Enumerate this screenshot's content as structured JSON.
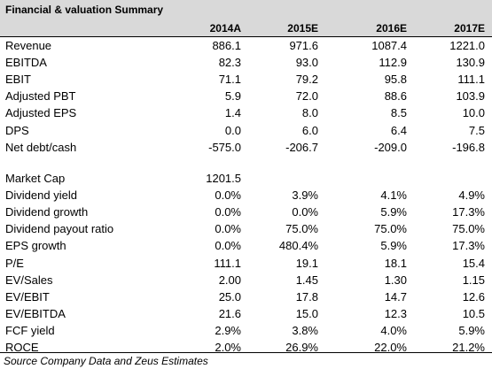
{
  "title": "Financial & valuation Summary",
  "columns": [
    "2014A",
    "2015E",
    "2016E",
    "2017E"
  ],
  "section1": [
    {
      "label": "Revenue",
      "values": [
        "886.1",
        "971.6",
        "1087.4",
        "1221.0"
      ]
    },
    {
      "label": "EBITDA",
      "values": [
        "82.3",
        "93.0",
        "112.9",
        "130.9"
      ]
    },
    {
      "label": "EBIT",
      "values": [
        "71.1",
        "79.2",
        "95.8",
        "111.1"
      ]
    },
    {
      "label": "Adjusted PBT",
      "values": [
        "5.9",
        "72.0",
        "88.6",
        "103.9"
      ]
    },
    {
      "label": "Adjusted EPS",
      "values": [
        "1.4",
        "8.0",
        "8.5",
        "10.0"
      ]
    },
    {
      "label": "DPS",
      "values": [
        "0.0",
        "6.0",
        "6.4",
        "7.5"
      ]
    },
    {
      "label": "Net debt/cash",
      "values": [
        "-575.0",
        "-206.7",
        "-209.0",
        "-196.8"
      ]
    }
  ],
  "section2": [
    {
      "label": "Market Cap",
      "values": [
        "1201.5",
        "",
        "",
        ""
      ]
    },
    {
      "label": "Dividend yield",
      "values": [
        "0.0%",
        "3.9%",
        "4.1%",
        "4.9%"
      ]
    },
    {
      "label": "Dividend growth",
      "values": [
        "0.0%",
        "0.0%",
        "5.9%",
        "17.3%"
      ]
    },
    {
      "label": "Dividend payout ratio",
      "values": [
        "0.0%",
        "75.0%",
        "75.0%",
        "75.0%"
      ]
    },
    {
      "label": "EPS growth",
      "values": [
        "0.0%",
        "480.4%",
        "5.9%",
        "17.3%"
      ]
    },
    {
      "label": "P/E",
      "values": [
        "111.1",
        "19.1",
        "18.1",
        "15.4"
      ]
    },
    {
      "label": "EV/Sales",
      "values": [
        "2.00",
        "1.45",
        "1.30",
        "1.15"
      ]
    },
    {
      "label": "EV/EBIT",
      "values": [
        "25.0",
        "17.8",
        "14.7",
        "12.6"
      ]
    },
    {
      "label": "EV/EBITDA",
      "values": [
        "21.6",
        "15.0",
        "12.3",
        "10.5"
      ]
    },
    {
      "label": "FCF yield",
      "values": [
        "2.9%",
        "3.8%",
        "4.0%",
        "5.9%"
      ]
    },
    {
      "label": "ROCE",
      "values": [
        "2.0%",
        "26.9%",
        "22.0%",
        "21.2%"
      ]
    }
  ],
  "source": "Source Company Data and Zeus Estimates"
}
